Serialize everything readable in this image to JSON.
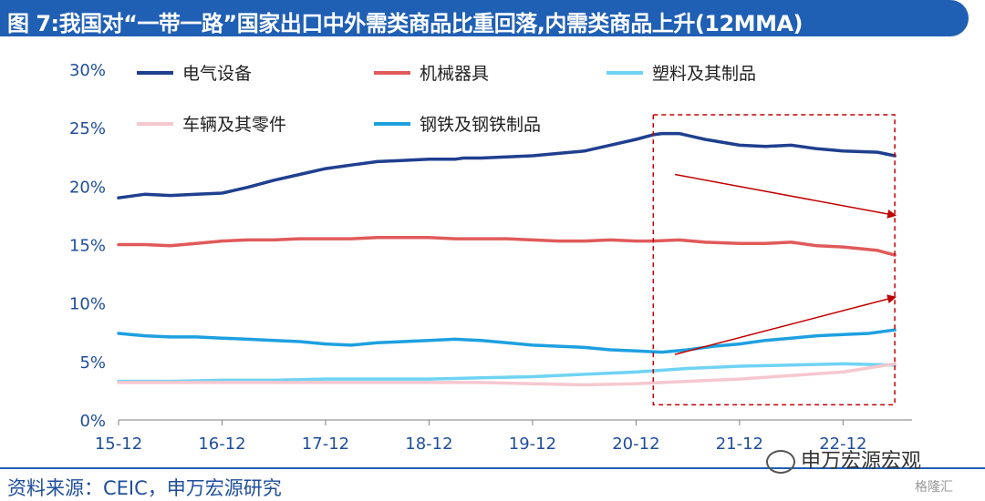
{
  "title": "图 7:我国对“一带一路”国家出口中外需类商品比重回落,内需类商品上升(12MMA)",
  "footer": {
    "source": "资料来源：CEIC，申万宏源研究",
    "brand": "申万宏源宏观",
    "watermark": "格隆汇"
  },
  "colors": {
    "title_bg": "#1f5fb4",
    "highlight_box": "#c00000",
    "arrow": "#c00000"
  },
  "chart_data": {
    "type": "line",
    "title": "",
    "xlabel": "",
    "ylabel": "",
    "ylim": [
      0,
      30
    ],
    "yticks": [
      0,
      5,
      10,
      15,
      20,
      25,
      30
    ],
    "ytick_labels": [
      "0%",
      "5%",
      "10%",
      "15%",
      "20%",
      "25%",
      "30%"
    ],
    "xlim": [
      0,
      92
    ],
    "xticks": [
      0,
      12,
      24,
      36,
      48,
      60,
      72,
      84
    ],
    "xtick_labels": [
      "15-12",
      "16-12",
      "17-12",
      "18-12",
      "19-12",
      "20-12",
      "21-12",
      "22-12"
    ],
    "grid": false,
    "legend": "top-left",
    "highlight": {
      "x_start": 62,
      "x_end": 90,
      "y_start": 1.3,
      "y_end": 26.1
    },
    "annotations": [
      {
        "type": "arrow",
        "direction": "down",
        "from": [
          64.5,
          21
        ],
        "to": [
          90,
          17.5
        ]
      },
      {
        "type": "arrow",
        "direction": "up",
        "from": [
          64.5,
          5.6
        ],
        "to": [
          90,
          10.5
        ]
      }
    ],
    "series": [
      {
        "name": "电气设备",
        "color": "#1f3f8f",
        "x": [
          0,
          3,
          6,
          9,
          12,
          15,
          18,
          21,
          24,
          27,
          30,
          33,
          36,
          39,
          40,
          42,
          45,
          48,
          51,
          54,
          57,
          60,
          62,
          63,
          65,
          68,
          72,
          75,
          78,
          81,
          84,
          88,
          90
        ],
        "values": [
          19.0,
          19.3,
          19.2,
          19.3,
          19.4,
          19.9,
          20.5,
          21.0,
          21.5,
          21.8,
          22.1,
          22.2,
          22.3,
          22.3,
          22.4,
          22.4,
          22.5,
          22.6,
          22.8,
          23.0,
          23.5,
          24.0,
          24.4,
          24.5,
          24.5,
          24.0,
          23.5,
          23.4,
          23.5,
          23.2,
          23.0,
          22.9,
          22.6
        ]
      },
      {
        "name": "机械器具",
        "color": "#e05a5a",
        "x": [
          0,
          3,
          6,
          9,
          12,
          15,
          18,
          21,
          24,
          27,
          30,
          33,
          36,
          39,
          42,
          45,
          48,
          51,
          54,
          57,
          60,
          62,
          65,
          68,
          72,
          75,
          78,
          81,
          84,
          88,
          90
        ],
        "values": [
          15.0,
          15.0,
          14.9,
          15.1,
          15.3,
          15.4,
          15.4,
          15.5,
          15.5,
          15.5,
          15.6,
          15.6,
          15.6,
          15.5,
          15.5,
          15.5,
          15.4,
          15.3,
          15.3,
          15.4,
          15.3,
          15.3,
          15.4,
          15.2,
          15.1,
          15.1,
          15.2,
          14.9,
          14.8,
          14.5,
          14.1
        ]
      },
      {
        "name": "塑料及其制品",
        "color": "#6fd3f3",
        "x": [
          0,
          6,
          12,
          18,
          24,
          30,
          36,
          42,
          48,
          54,
          60,
          66,
          72,
          78,
          84,
          90
        ],
        "values": [
          3.3,
          3.3,
          3.4,
          3.4,
          3.5,
          3.5,
          3.5,
          3.6,
          3.7,
          3.9,
          4.1,
          4.4,
          4.6,
          4.7,
          4.8,
          4.7
        ]
      },
      {
        "name": "车辆及其零件",
        "color": "#f6c7cf",
        "x": [
          0,
          6,
          12,
          18,
          24,
          30,
          36,
          42,
          48,
          54,
          60,
          66,
          72,
          78,
          84,
          90
        ],
        "values": [
          3.2,
          3.2,
          3.2,
          3.2,
          3.2,
          3.2,
          3.2,
          3.2,
          3.1,
          3.0,
          3.1,
          3.3,
          3.5,
          3.8,
          4.1,
          4.8
        ]
      },
      {
        "name": "钢铁及钢铁制品",
        "color": "#1ea0e0",
        "x": [
          0,
          3,
          6,
          9,
          12,
          15,
          18,
          21,
          24,
          27,
          30,
          33,
          36,
          39,
          42,
          45,
          48,
          51,
          54,
          57,
          60,
          63,
          66,
          69,
          72,
          75,
          78,
          81,
          84,
          87,
          90
        ],
        "values": [
          7.4,
          7.2,
          7.1,
          7.1,
          7.0,
          6.9,
          6.8,
          6.7,
          6.5,
          6.4,
          6.6,
          6.7,
          6.8,
          6.9,
          6.8,
          6.6,
          6.4,
          6.3,
          6.2,
          6.0,
          5.9,
          5.8,
          6.0,
          6.3,
          6.5,
          6.8,
          7.0,
          7.2,
          7.3,
          7.4,
          7.7
        ]
      }
    ],
    "legend_rows": [
      [
        0,
        1,
        2
      ],
      [
        3,
        4
      ]
    ]
  }
}
